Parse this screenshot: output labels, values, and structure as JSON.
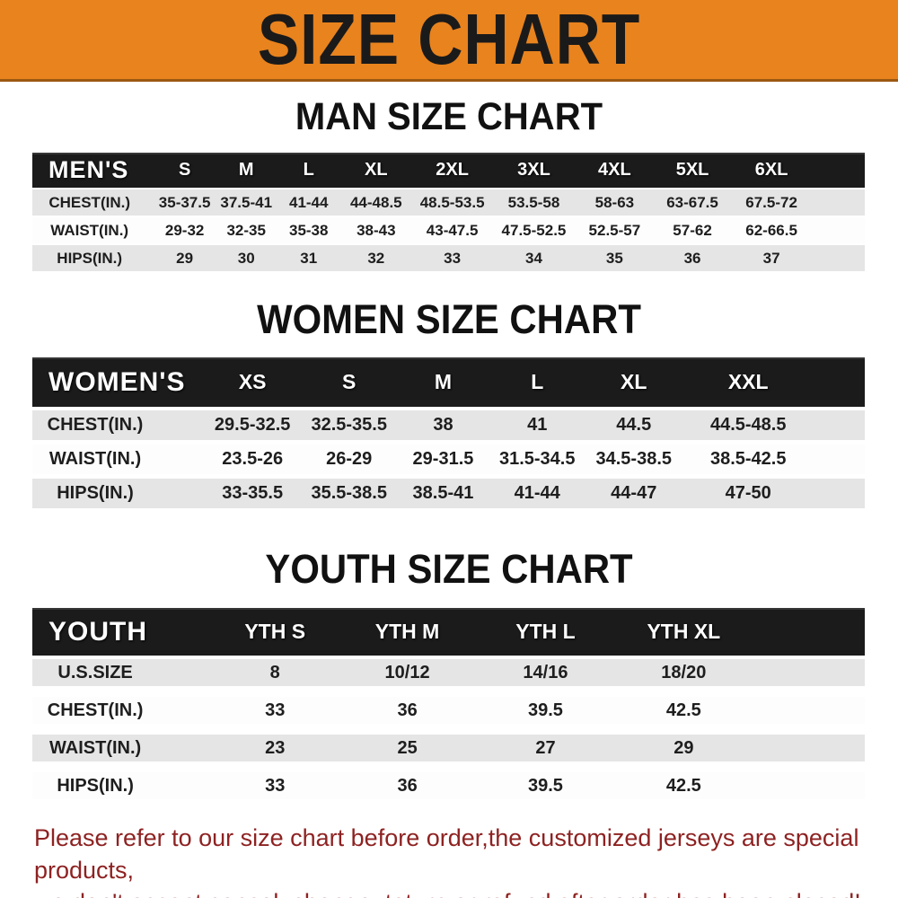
{
  "banner": {
    "title": "SIZE CHART"
  },
  "sections": [
    {
      "key": "mens",
      "heading": "MAN SIZE CHART",
      "header_label": "MEN'S",
      "columns": [
        "S",
        "M",
        "L",
        "XL",
        "2XL",
        "3XL",
        "4XL",
        "5XL",
        "6XL"
      ],
      "rows": [
        {
          "label": "CHEST(IN.)",
          "values": [
            "35-37.5",
            "37.5-41",
            "41-44",
            "44-48.5",
            "48.5-53.5",
            "53.5-58",
            "58-63",
            "63-67.5",
            "67.5-72"
          ]
        },
        {
          "label": "WAIST(IN.)",
          "values": [
            "29-32",
            "32-35",
            "35-38",
            "38-43",
            "43-47.5",
            "47.5-52.5",
            "52.5-57",
            "57-62",
            "62-66.5"
          ]
        },
        {
          "label": "HIPS(IN.)",
          "values": [
            "29",
            "30",
            "31",
            "32",
            "33",
            "34",
            "35",
            "36",
            "37"
          ]
        }
      ]
    },
    {
      "key": "womens",
      "heading": "WOMEN SIZE CHART",
      "header_label": "WOMEN'S",
      "columns": [
        "XS",
        "S",
        "M",
        "L",
        "XL",
        "XXL"
      ],
      "rows": [
        {
          "label": "CHEST(IN.)",
          "values": [
            "29.5-32.5",
            "32.5-35.5",
            "38",
            "41",
            "44.5",
            "44.5-48.5"
          ]
        },
        {
          "label": "WAIST(IN.)",
          "values": [
            "23.5-26",
            "26-29",
            "29-31.5",
            "31.5-34.5",
            "34.5-38.5",
            "38.5-42.5"
          ]
        },
        {
          "label": "HIPS(IN.)",
          "values": [
            "33-35.5",
            "35.5-38.5",
            "38.5-41",
            "41-44",
            "44-47",
            "47-50"
          ]
        }
      ]
    },
    {
      "key": "youth",
      "heading": "YOUTH SIZE CHART",
      "header_label": "YOUTH",
      "columns": [
        "YTH S",
        "YTH M",
        "YTH L",
        "YTH XL"
      ],
      "rows": [
        {
          "label": "U.S.SIZE",
          "values": [
            "8",
            "10/12",
            "14/16",
            "18/20"
          ]
        },
        {
          "label": "CHEST(IN.)",
          "values": [
            "33",
            "36",
            "39.5",
            "42.5"
          ]
        },
        {
          "label": "WAIST(IN.)",
          "values": [
            "23",
            "25",
            "27",
            "29"
          ]
        },
        {
          "label": "HIPS(IN.)",
          "values": [
            "33",
            "36",
            "39.5",
            "42.5"
          ]
        }
      ]
    }
  ],
  "footer": {
    "line1": "Please refer to our size chart before order,the customized jerseys are special products,",
    "line2": "we don't accept cancel, change, teturn or refund after order has been placed!"
  },
  "colors": {
    "banner_bg": "#E8831E",
    "banner_border": "#9C5812",
    "header_bg": "#1B1B1B",
    "row_alt": "#E5E5E5",
    "footer_text": "#8E2222"
  }
}
